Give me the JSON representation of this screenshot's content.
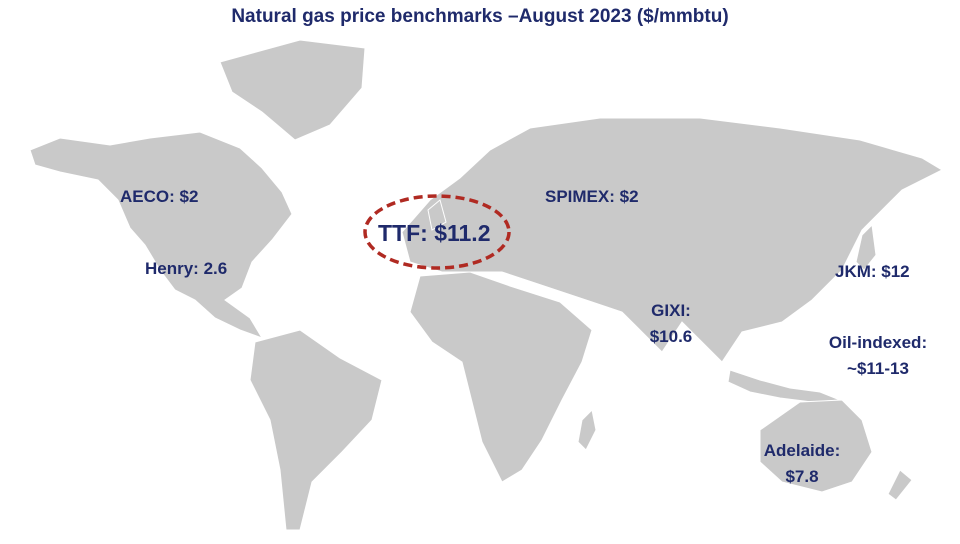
{
  "title": "Natural gas price benchmarks –August 2023 ($/mmbtu)",
  "labels": {
    "aeco": "AECO: $2",
    "henry": "Henry: 2.6",
    "ttf": "TTF: $11.2",
    "spimex": "SPIMEX: $2",
    "gixi_name": "GIXI:",
    "gixi_value": "$10.6",
    "jkm": "JKM: $12",
    "oil_name": "Oil-indexed:",
    "oil_value": "~$11-13",
    "adelaide_name": "Adelaide:",
    "adelaide_value": "$7.8"
  },
  "colors": {
    "land": "#c9c9c9",
    "text": "#1f2a6b",
    "highlight": "#b02a22"
  }
}
